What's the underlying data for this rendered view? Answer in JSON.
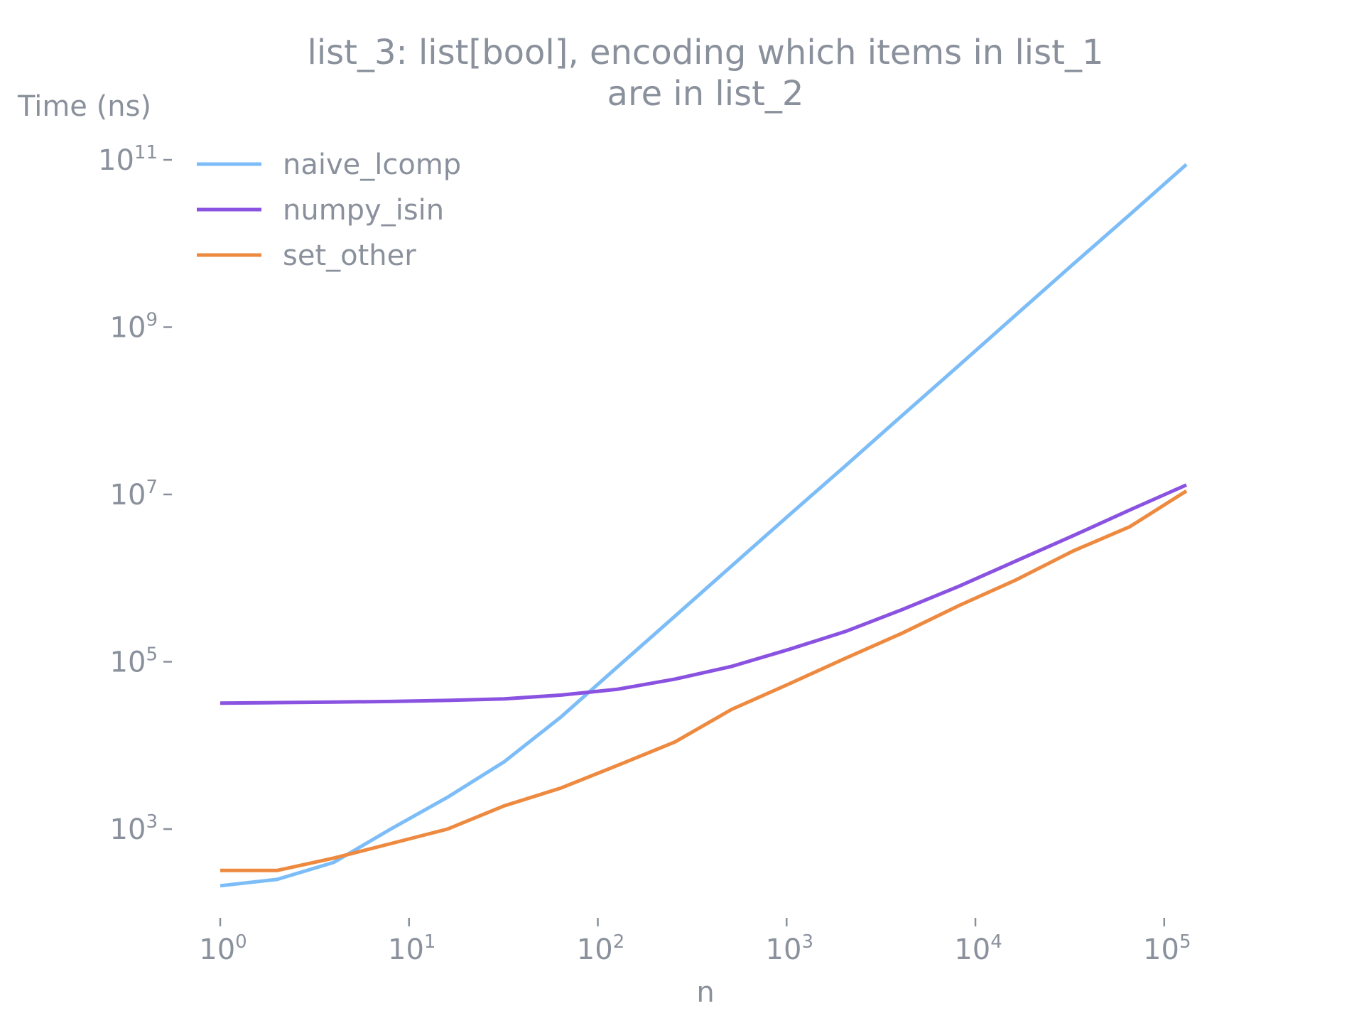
{
  "chart_data": {
    "type": "line",
    "title_line1": "list_3: list[bool], encoding which items in list_1",
    "title_line2": "are in list_2",
    "xlabel": "n",
    "ylabel": "Time (ns)",
    "x_scale": "log",
    "y_scale": "log",
    "xlim": [
      0.75,
      200000
    ],
    "ylim": [
      60,
      300000000000
    ],
    "grid": false,
    "legend_position": "top-left",
    "x_ticks": [
      {
        "base": "10",
        "exp": "0",
        "value": 1
      },
      {
        "base": "10",
        "exp": "1",
        "value": 10
      },
      {
        "base": "10",
        "exp": "2",
        "value": 100
      },
      {
        "base": "10",
        "exp": "3",
        "value": 1000
      },
      {
        "base": "10",
        "exp": "4",
        "value": 10000
      },
      {
        "base": "10",
        "exp": "5",
        "value": 100000
      }
    ],
    "y_ticks": [
      {
        "base": "10",
        "exp": "3",
        "value": 1000
      },
      {
        "base": "10",
        "exp": "5",
        "value": 100000
      },
      {
        "base": "10",
        "exp": "7",
        "value": 10000000
      },
      {
        "base": "10",
        "exp": "9",
        "value": 1000000000
      },
      {
        "base": "10",
        "exp": "11",
        "value": 100000000000
      }
    ],
    "x": [
      1,
      2,
      4,
      8,
      16,
      32,
      64,
      128,
      256,
      512,
      1024,
      2048,
      4096,
      8192,
      16384,
      32768,
      65536,
      131072
    ],
    "series": [
      {
        "name": "naive_lcomp",
        "color": "#7dbdf7",
        "values": [
          210,
          250,
          400,
          1000,
          2400,
          6400,
          22000,
          88000,
          350000,
          1400000,
          5600000,
          22000000,
          88000000,
          350000000,
          1400000000,
          5600000000,
          22000000000,
          88000000000
        ]
      },
      {
        "name": "numpy_isin",
        "color": "#8a52e0",
        "values": [
          32000,
          32500,
          33000,
          33500,
          34500,
          36000,
          40000,
          47000,
          62000,
          88000,
          140000,
          230000,
          420000,
          800000,
          1600000,
          3200000,
          6500000,
          13000000
        ]
      },
      {
        "name": "set_other",
        "color": "#ee8a40",
        "values": [
          320,
          320,
          450,
          670,
          1000,
          1900,
          3100,
          5800,
          11000,
          27000,
          54000,
          110000,
          220000,
          470000,
          950000,
          2100000,
          4100000,
          11000000
        ]
      }
    ]
  }
}
